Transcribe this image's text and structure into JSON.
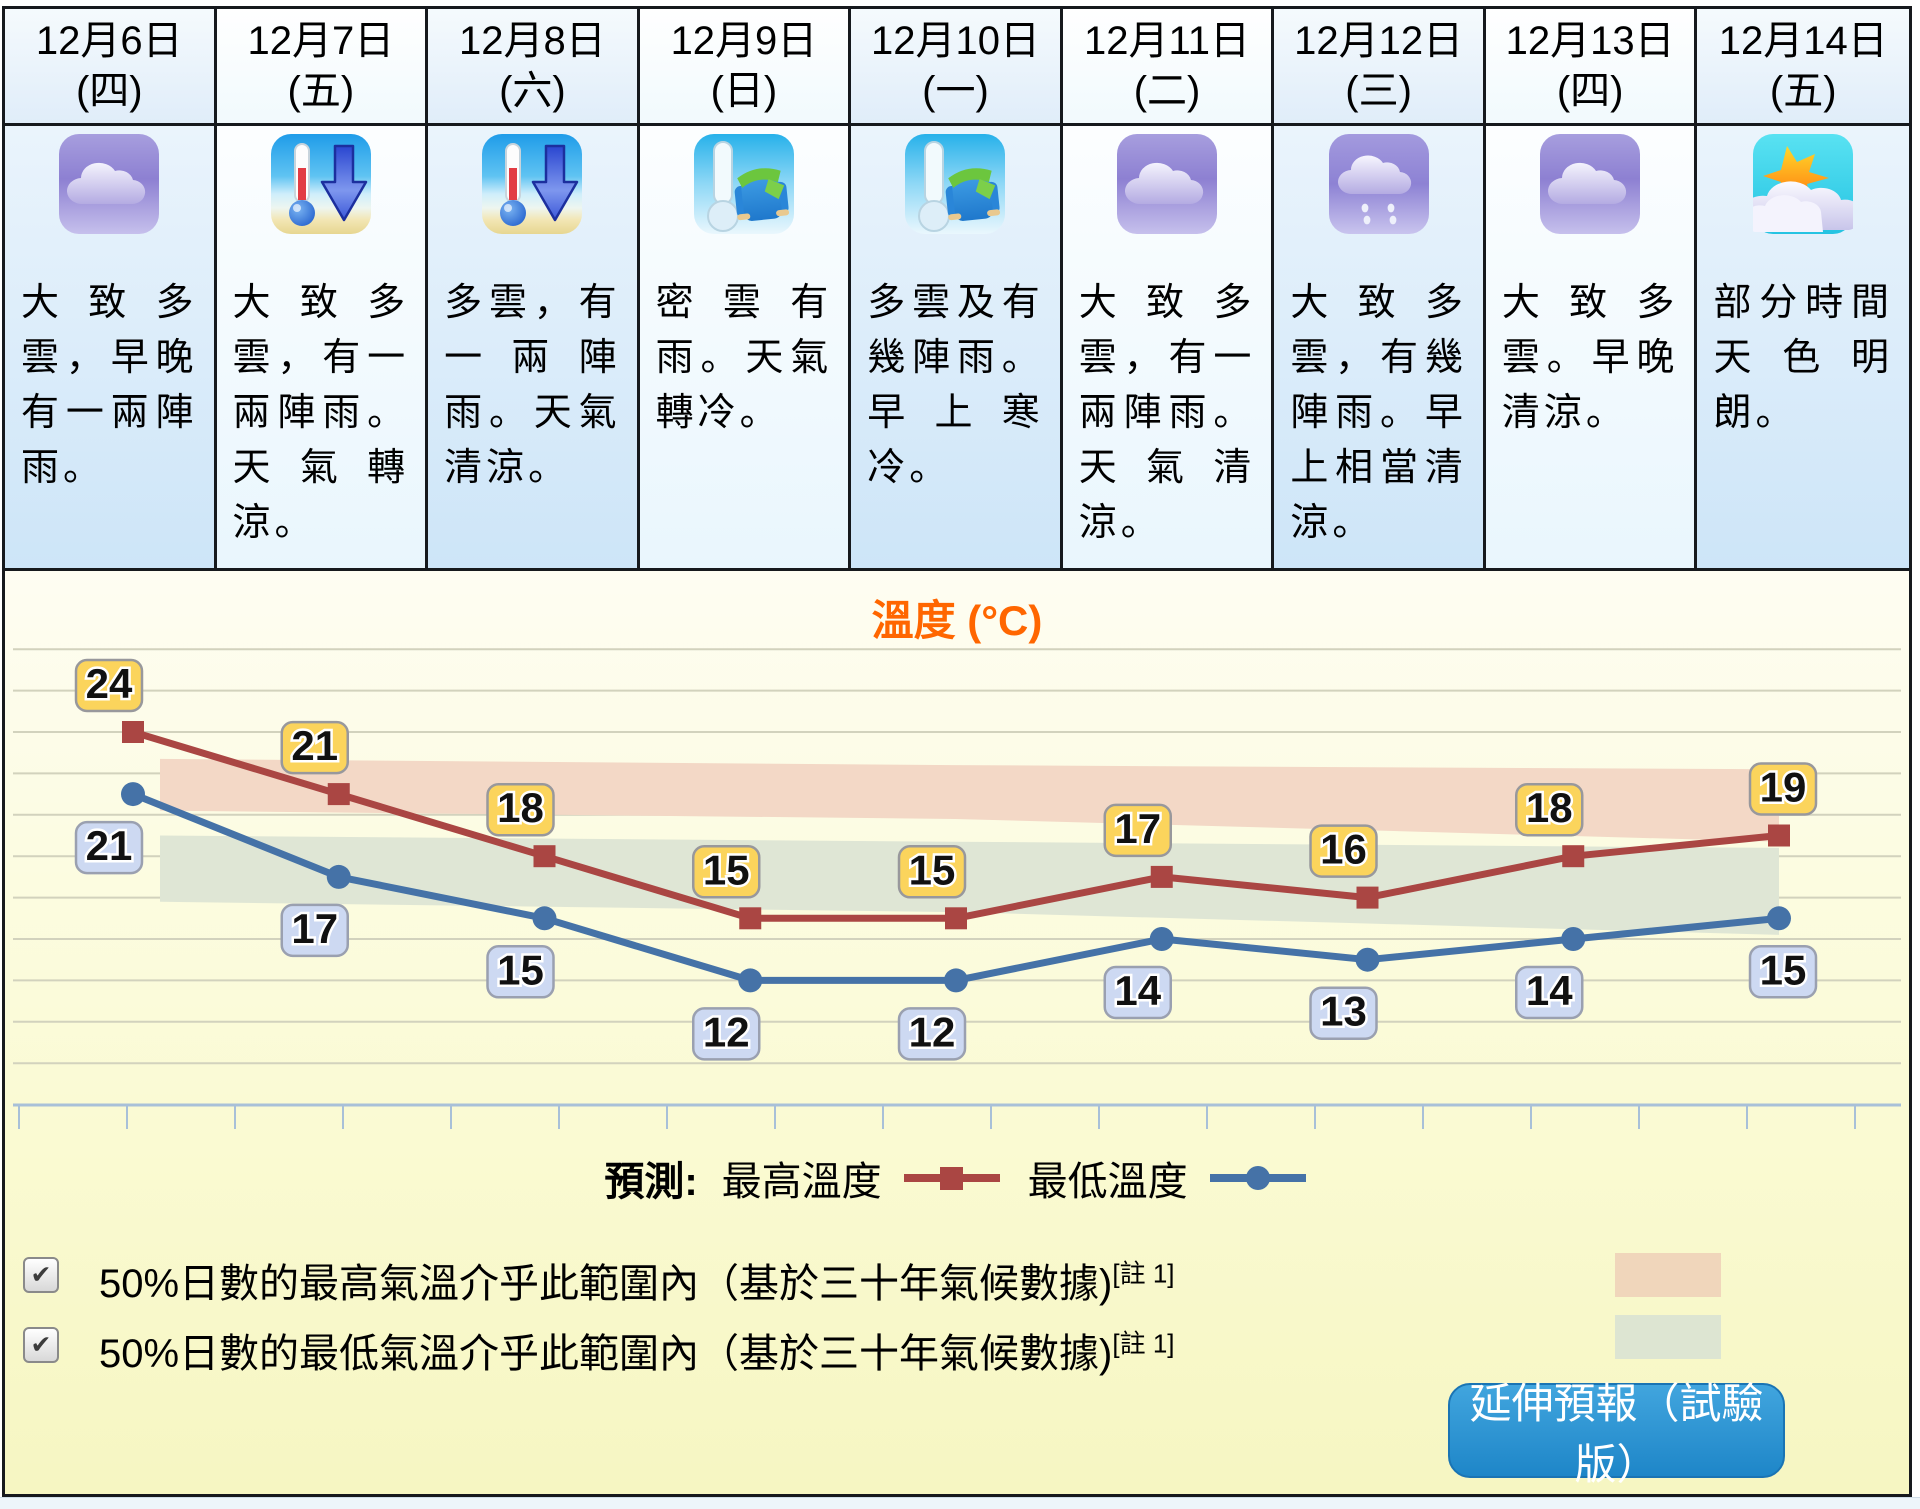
{
  "forecast_days": [
    {
      "date": "12月6日",
      "weekday": "(四)",
      "icon": "cloudy",
      "desc": "大致多雲，早晚有一兩陣雨。"
    },
    {
      "date": "12月7日",
      "weekday": "(五)",
      "icon": "temp-drop",
      "desc": "大致多雲，有一兩陣雨。天氣轉涼。"
    },
    {
      "date": "12月8日",
      "weekday": "(六)",
      "icon": "temp-drop",
      "desc": "多雲，有一兩陣雨。天氣清涼。"
    },
    {
      "date": "12月9日",
      "weekday": "(日)",
      "icon": "cold-wear",
      "desc": "密雲有雨。天氣轉冷。"
    },
    {
      "date": "12月10日",
      "weekday": "(一)",
      "icon": "cold-wear",
      "desc": "多雲及有幾陣雨。早上寒冷。"
    },
    {
      "date": "12月11日",
      "weekday": "(二)",
      "icon": "cloudy",
      "desc": "大致多雲，有一兩陣雨。天氣清涼。"
    },
    {
      "date": "12月12日",
      "weekday": "(三)",
      "icon": "cloudy-drizzle",
      "desc": "大致多雲，有幾陣雨。早上相當清涼。"
    },
    {
      "date": "12月13日",
      "weekday": "(四)",
      "icon": "cloudy",
      "desc": "大致多雲。早晚清涼。"
    },
    {
      "date": "12月14日",
      "weekday": "(五)",
      "icon": "sunny-intervals",
      "desc": "部分時間天色明朗。"
    }
  ],
  "chart_data": {
    "type": "line",
    "title": "溫度 (°C)",
    "categories": [
      "12月6日",
      "12月7日",
      "12月8日",
      "12月9日",
      "12月10日",
      "12月11日",
      "12月12日",
      "12月13日",
      "12月14日"
    ],
    "series": [
      {
        "name": "最高溫度",
        "values": [
          24,
          21,
          18,
          15,
          15,
          17,
          16,
          18,
          19
        ],
        "color": "#aa4643",
        "marker": "square",
        "label_bg": "#fbd45c",
        "label_border": "#98989c"
      },
      {
        "name": "最低溫度",
        "values": [
          21,
          17,
          15,
          12,
          12,
          14,
          13,
          14,
          15
        ],
        "color": "#4572a7",
        "marker": "circle",
        "label_bg": "#cdd9f2",
        "label_border": "#9aa0b0"
      }
    ],
    "ylim": [
      6,
      29
    ],
    "grid_range": [
      8,
      28
    ],
    "grid_step": 2,
    "grid_on": true,
    "legend_position": "bottom-center",
    "normal_max_band": {
      "upper": [
        22.7,
        22.4,
        22.2
      ],
      "lower": [
        20.2,
        19.8,
        18.7
      ],
      "color": "#f3d8c6"
    },
    "normal_min_band": {
      "upper": [
        19.0,
        18.7,
        18.4
      ],
      "lower": [
        15.8,
        15.3,
        14.2
      ],
      "color": "#dfe6d5"
    }
  },
  "legend": {
    "prefix": "預測:",
    "max_label": "最高溫度",
    "min_label": "最低溫度"
  },
  "options": [
    {
      "checked": true,
      "check_glyph": "✔",
      "label": "50%日數的最高氣溫介乎此範圍內（基於三十年氣候數據)",
      "sup": "[註 1]",
      "swatch": "#f0d6bb"
    },
    {
      "checked": true,
      "check_glyph": "✔",
      "label": "50%日數的最低氣溫介乎此範圍內（基於三十年氣候數據)",
      "sup": "[註 1]",
      "swatch": "#dde5d2"
    }
  ],
  "button": {
    "label": "延伸預報（試驗版）"
  },
  "icons": [
    "cloudy-icon",
    "temp-drop-icon",
    "cold-wear-icon",
    "cloudy-drizzle-icon",
    "sunny-intervals-icon"
  ],
  "colors": {
    "title": "#ff6600",
    "button": "#1e86c8",
    "panel_bg": "#fafad2",
    "axis": "#a8c0d8"
  }
}
